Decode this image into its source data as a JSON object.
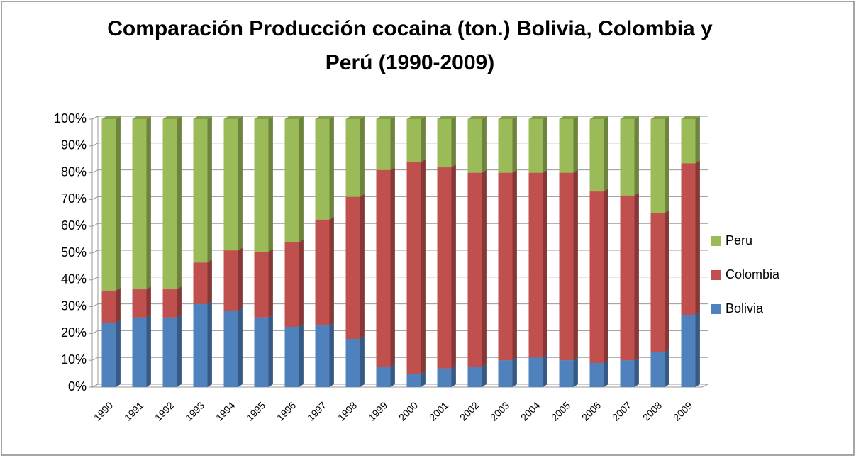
{
  "chart_data": {
    "type": "stacked_bar_100",
    "title": "Comparación Producción cocaina (ton.) Bolivia, Colombia y Perú (1990-2009)",
    "categories": [
      "1990",
      "1991",
      "1992",
      "1993",
      "1994",
      "1995",
      "1996",
      "1997",
      "1998",
      "1999",
      "2000",
      "2001",
      "2002",
      "2003",
      "2004",
      "2005",
      "2006",
      "2007",
      "2008",
      "2009"
    ],
    "series": [
      {
        "name": "Bolivia",
        "color": "#4f81bd",
        "values": [
          24,
          26,
          26,
          31,
          28.5,
          26,
          22.5,
          23,
          18,
          7.5,
          5,
          7,
          7.5,
          10,
          11,
          10,
          9,
          10,
          13,
          27
        ]
      },
      {
        "name": "Colombia",
        "color": "#c0504d",
        "values": [
          12,
          10.5,
          10.5,
          15.5,
          22.5,
          24.5,
          31.5,
          39.5,
          53,
          73.5,
          79,
          75,
          72.5,
          70,
          69,
          70,
          64,
          61.5,
          52,
          56.5
        ]
      },
      {
        "name": "Peru",
        "color": "#9bbb59",
        "values": [
          64,
          63.5,
          63.5,
          53.5,
          49,
          49.5,
          46,
          37.5,
          29,
          19,
          16,
          18,
          20,
          20,
          20,
          20,
          27,
          28.5,
          35,
          16.5
        ]
      }
    ],
    "ylim": [
      0,
      100
    ],
    "yticks": [
      {
        "value": 0,
        "label": "0%"
      },
      {
        "value": 10,
        "label": "10%"
      },
      {
        "value": 20,
        "label": "20%"
      },
      {
        "value": 30,
        "label": "30%"
      },
      {
        "value": 40,
        "label": "40%"
      },
      {
        "value": 50,
        "label": "50%"
      },
      {
        "value": 60,
        "label": "60%"
      },
      {
        "value": 70,
        "label": "70%"
      },
      {
        "value": 80,
        "label": "80%"
      },
      {
        "value": 90,
        "label": "90%"
      },
      {
        "value": 100,
        "label": "100%"
      }
    ],
    "grid": true,
    "legend": "right"
  }
}
